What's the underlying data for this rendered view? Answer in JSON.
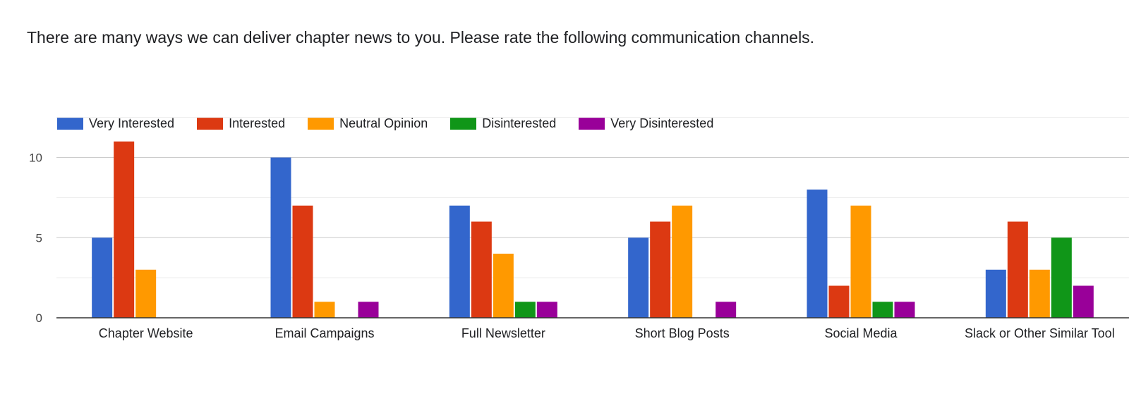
{
  "title": "There are many ways we can deliver chapter news to you. Please rate the following communication channels.",
  "chart_data": {
    "type": "bar",
    "title": "",
    "xlabel": "",
    "ylabel": "",
    "ylim": [
      0,
      12.5
    ],
    "yticks": [
      0,
      5,
      10
    ],
    "grid": true,
    "legend_position": "top-left",
    "categories": [
      "Chapter Website",
      "Email Campaigns",
      "Full Newsletter",
      "Short Blog Posts",
      "Social Media",
      "Slack or Other Similar Tool"
    ],
    "series": [
      {
        "name": "Very Interested",
        "color": "#3366cc",
        "values": [
          5,
          10,
          7,
          5,
          8,
          3
        ]
      },
      {
        "name": "Interested",
        "color": "#dc3912",
        "values": [
          11,
          7,
          6,
          6,
          2,
          6
        ]
      },
      {
        "name": "Neutral Opinion",
        "color": "#ff9900",
        "values": [
          3,
          1,
          4,
          7,
          7,
          3
        ]
      },
      {
        "name": "Disinterested",
        "color": "#109618",
        "values": [
          0,
          0,
          1,
          0,
          1,
          5
        ]
      },
      {
        "name": "Very Disinterested",
        "color": "#990099",
        "values": [
          0,
          1,
          1,
          1,
          1,
          2
        ]
      }
    ]
  }
}
